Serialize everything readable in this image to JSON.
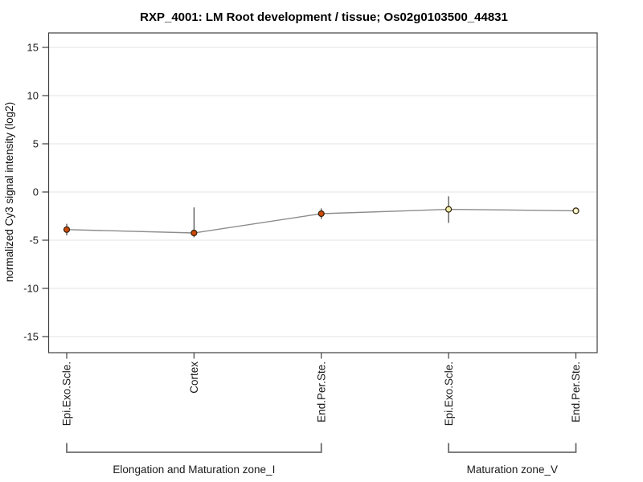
{
  "chart_data": {
    "type": "line",
    "title": "RXP_4001: LM Root development / tissue; Os02g0103500_44831",
    "xlabel": "",
    "ylabel": "normalized Cy3 signal intensity (log2)",
    "ylim": [
      -16.6,
      16.6
    ],
    "yticks": [
      15,
      10,
      5,
      0,
      -5,
      -10,
      -15
    ],
    "grid": true,
    "legend_position": "none",
    "categories": [
      "Epi.Exo.Scle.",
      "Cortex",
      "End.Per.Ste.",
      "Epi.Exo.Scle.",
      "End.Per.Ste."
    ],
    "series": [
      {
        "name": "Os02g0103500_44831",
        "values": [
          -3.9,
          -4.25,
          -2.25,
          -1.8,
          -1.95
        ],
        "error_high": [
          -3.3,
          -1.6,
          -1.7,
          -0.45,
          -1.9
        ],
        "error_low": [
          -4.5,
          -4.7,
          -2.8,
          -3.2,
          -2.05
        ],
        "point_colors": [
          "#cc4a0a",
          "#cc4a0a",
          "#cc4a0a",
          "#eeeeaa",
          "#f0f0bc"
        ],
        "point_hollow": [
          false,
          false,
          false,
          false,
          true
        ]
      }
    ],
    "groups": [
      {
        "label": "Elongation and Maturation zone_I",
        "start": 0,
        "end": 2
      },
      {
        "label": "Maturation zone_V",
        "start": 3,
        "end": 4
      }
    ],
    "colors": {
      "line": "#8c8c8c",
      "error_bar": "#303030",
      "grid": "#e3e3e3",
      "box": "#404040",
      "point_stroke": "#33200a",
      "bracket": "#6b6b6b",
      "hollow_center": "#fbfbee"
    }
  }
}
